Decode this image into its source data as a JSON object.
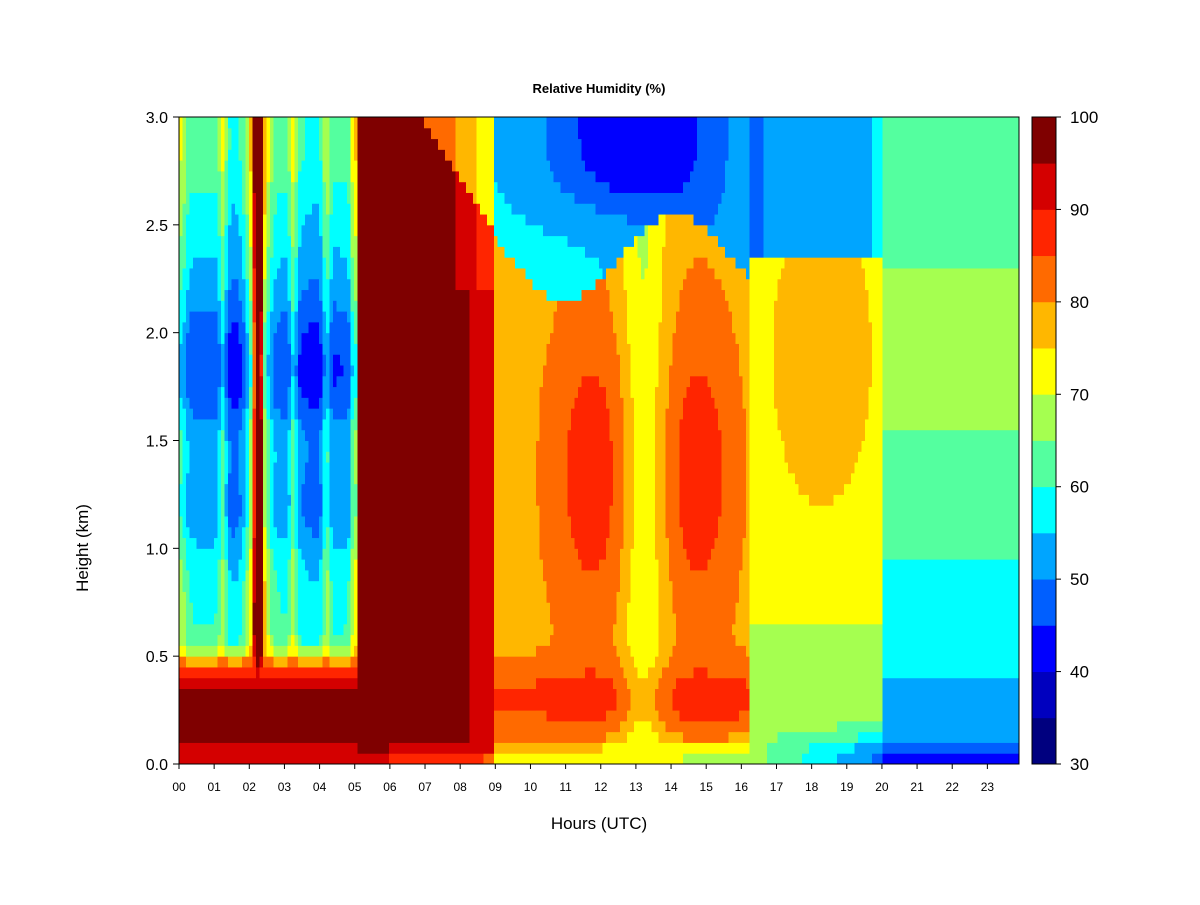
{
  "chart_data": {
    "type": "heatmap",
    "title": "Relative Humidity (%)",
    "xlabel": "Hours (UTC)",
    "ylabel": "Height (km)",
    "x_ticks": [
      "00",
      "01",
      "02",
      "03",
      "04",
      "05",
      "06",
      "07",
      "08",
      "09",
      "10",
      "11",
      "12",
      "13",
      "14",
      "15",
      "16",
      "17",
      "18",
      "19",
      "20",
      "21",
      "22",
      "23"
    ],
    "xlim": [
      0,
      23.9
    ],
    "ylim": [
      0,
      3.0
    ],
    "y_ticks": [
      "0.0",
      "0.5",
      "1.0",
      "1.5",
      "2.0",
      "2.5",
      "3.0"
    ],
    "y_tick_values": [
      0,
      0.5,
      1.0,
      1.5,
      2.0,
      2.5,
      3.0
    ],
    "colorbar": {
      "min": 30,
      "max": 100,
      "step": 5,
      "tick_labels": [
        "30",
        "40",
        "50",
        "60",
        "70",
        "80",
        "90",
        "100"
      ],
      "tick_values": [
        30,
        40,
        50,
        60,
        70,
        80,
        90,
        100
      ],
      "colors": [
        "#00007f",
        "#0000bf",
        "#0000ff",
        "#005fff",
        "#00a5ff",
        "#00ffff",
        "#54ff9f",
        "#a5ff50",
        "#ffff00",
        "#ffb700",
        "#ff6a00",
        "#ff2500",
        "#d40000",
        "#7f0000"
      ]
    }
  }
}
